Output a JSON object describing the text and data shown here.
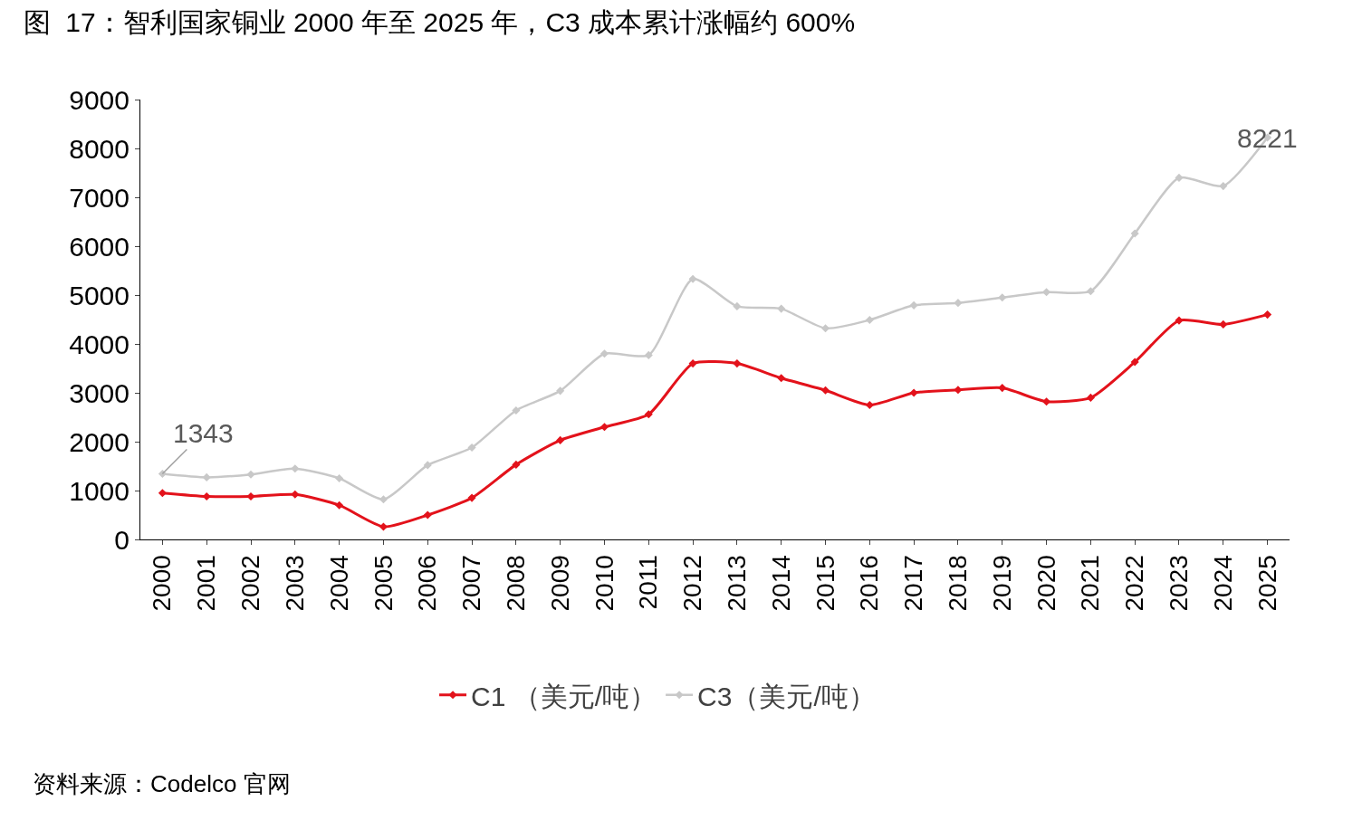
{
  "chart_data": {
    "type": "line",
    "title": "图  17：智利国家铜业 2000 年至 2025 年，C3 成本累计涨幅约 600%",
    "categories": [
      "2000",
      "2001",
      "2002",
      "2003",
      "2004",
      "2005",
      "2006",
      "2007",
      "2008",
      "2009",
      "2010",
      "2011",
      "2012",
      "2013",
      "2014",
      "2015",
      "2016",
      "2017",
      "2018",
      "2019",
      "2020",
      "2021",
      "2022",
      "2023",
      "2024",
      "2025"
    ],
    "series": [
      {
        "name": "C1 （美元/吨）",
        "color": "#e3121b",
        "values": [
          950,
          880,
          880,
          920,
          700,
          260,
          500,
          850,
          1530,
          2030,
          2300,
          2560,
          3600,
          3600,
          3300,
          3050,
          2750,
          3000,
          3060,
          3100,
          2820,
          2900,
          3630,
          4480,
          4400,
          4600
        ]
      },
      {
        "name": "C3（美元/吨）",
        "color": "#c8c8c8",
        "values": [
          1343,
          1270,
          1330,
          1450,
          1250,
          820,
          1520,
          1880,
          2640,
          3040,
          3800,
          3770,
          5330,
          4770,
          4720,
          4320,
          4490,
          4790,
          4840,
          4950,
          5060,
          5080,
          6260,
          7400,
          7230,
          8221
        ]
      }
    ],
    "ylim": [
      0,
      9000
    ],
    "yticks": [
      0,
      1000,
      2000,
      3000,
      4000,
      5000,
      6000,
      7000,
      8000,
      9000
    ],
    "annotations": [
      {
        "text": "1343",
        "x": "2000",
        "y": 1343
      },
      {
        "text": "8221",
        "x": "2025",
        "y": 8221
      },
      "资料来源：Codelco 官网"
    ],
    "legend": "bottom",
    "marker": "diamond",
    "line_style": "solid"
  }
}
